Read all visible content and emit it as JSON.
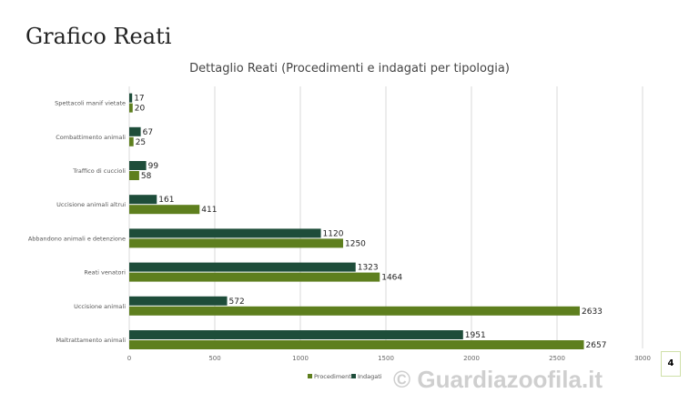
{
  "page_title": "Grafico Reati",
  "watermark": "© Guardiazoofila.it",
  "page_number": "4",
  "chart_data": {
    "type": "bar",
    "orientation": "horizontal",
    "title": "Dettaglio Reati (Procedimenti e indagati per tipologia)",
    "categories": [
      "Spettacoli manif vietate",
      "Combattimento animali",
      "Traffico di cuccioli",
      "Uccisione animali altrui",
      "Abbandono animali e detenzione",
      "Reati venatori",
      "Uccisione animali",
      "Maltrattamento animali"
    ],
    "series": [
      {
        "name": "Indagati",
        "color": "#1e4d3a",
        "values": [
          17,
          67,
          99,
          161,
          1120,
          1323,
          572,
          1951
        ]
      },
      {
        "name": "Procedimenti",
        "color": "#5e7f1e",
        "values": [
          20,
          25,
          58,
          411,
          1250,
          1464,
          2633,
          2657
        ]
      }
    ],
    "xlim": [
      0,
      3000
    ],
    "xticks": [
      "0",
      "500",
      "1000",
      "1500",
      "2000",
      "2500",
      "3000"
    ],
    "grid": true,
    "legend": "bottom",
    "legend_order": [
      "Procedimenti",
      "Indagati"
    ]
  }
}
